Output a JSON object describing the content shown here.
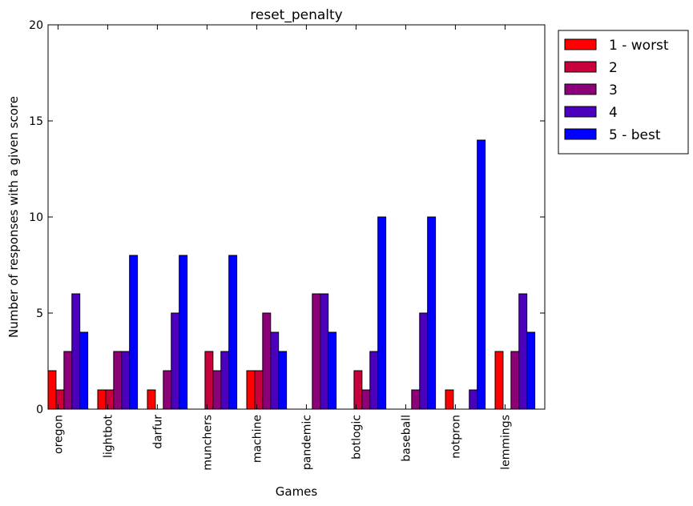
{
  "chart_data": {
    "type": "bar",
    "title": "reset_penalty",
    "xlabel": "Games",
    "ylabel": "Number of responses with a given score",
    "ylim": [
      0,
      20
    ],
    "yticks": [
      0,
      5,
      10,
      15,
      20
    ],
    "grid": false,
    "legend_position": "outside-top-right",
    "categories": [
      "oregon",
      "lightbot",
      "darfur",
      "munchers",
      "machine",
      "pandemic",
      "botlogic",
      "baseball",
      "notpron",
      "lemmings"
    ],
    "series": [
      {
        "name": "1 - worst",
        "color": "#ff0000",
        "values": [
          2,
          1,
          1,
          0,
          2,
          0,
          0,
          0,
          1,
          3
        ]
      },
      {
        "name": "2",
        "color": "#c8003c",
        "values": [
          1,
          1,
          0,
          3,
          2,
          0,
          2,
          0,
          0,
          0
        ]
      },
      {
        "name": "3",
        "color": "#8c0078",
        "values": [
          3,
          3,
          2,
          2,
          5,
          6,
          1,
          1,
          0,
          3
        ]
      },
      {
        "name": "4",
        "color": "#4b00be",
        "values": [
          6,
          3,
          5,
          3,
          4,
          6,
          3,
          5,
          1,
          6
        ]
      },
      {
        "name": "5 - best",
        "color": "#0000ff",
        "values": [
          4,
          8,
          8,
          8,
          3,
          4,
          10,
          10,
          14,
          4
        ]
      }
    ]
  }
}
